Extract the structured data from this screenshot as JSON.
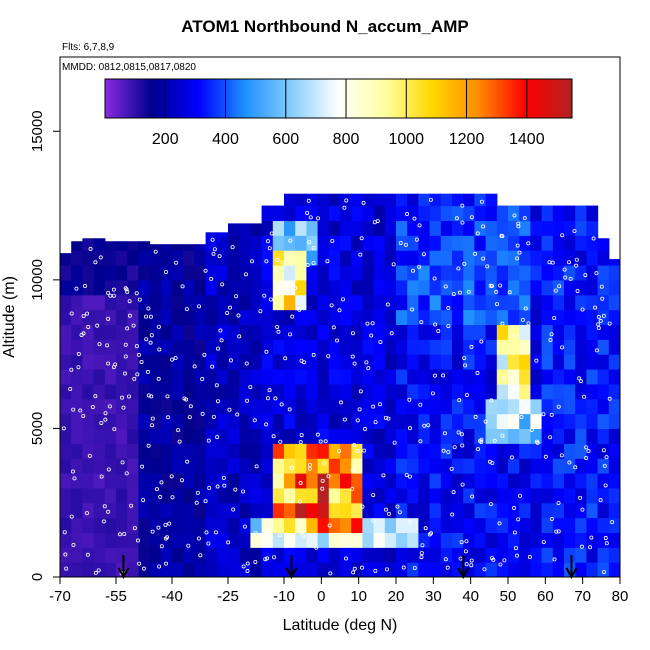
{
  "chart_data": {
    "type": "heatmap",
    "title": "ATOM1 Northbound N_accum_AMP",
    "subtitle_flights": "Flts: 6,7,8,9",
    "subtitle_dates": "MMDD: 0812,0815,0817,0820",
    "xlabel": "Latitude (deg N)",
    "ylabel": "Altitude (m)",
    "xlim": [
      -70,
      80
    ],
    "ylim": [
      0,
      17500
    ],
    "x_ticks": [
      -70,
      -55,
      -40,
      -25,
      -10,
      0,
      10,
      20,
      30,
      40,
      50,
      60,
      70,
      80
    ],
    "x_tick_labels": [
      "-70",
      "-55",
      "-40",
      "-25",
      "-10",
      "0",
      "10",
      "20",
      "30",
      "40",
      "50",
      "60",
      "70",
      "80"
    ],
    "y_ticks": [
      0,
      5000,
      10000,
      15000
    ],
    "y_tick_labels": [
      "0",
      "5000",
      "10000",
      "15000"
    ],
    "colorbar": {
      "range": [
        0,
        1550
      ],
      "ticks": [
        200,
        400,
        600,
        800,
        1000,
        1200,
        1400
      ],
      "tick_labels": [
        "200",
        "400",
        "600",
        "800",
        "1000",
        "1200",
        "1400"
      ],
      "colors": [
        "#8A2BE2",
        "#00008B",
        "#0000FF",
        "#1E90FF",
        "#87CEFA",
        "#FFFFFF",
        "#FFFFA0",
        "#FFD700",
        "#FF8C00",
        "#FF0000",
        "#B22222"
      ]
    },
    "bin_width_deg": 3,
    "bin_height_m": 500,
    "column_tops_m": [
      [
        -70,
        10900
      ],
      [
        -67,
        11300
      ],
      [
        -64,
        11400
      ],
      [
        -61,
        11400
      ],
      [
        -58,
        11300
      ],
      [
        -55,
        11300
      ],
      [
        -52,
        11300
      ],
      [
        -49,
        11300
      ],
      [
        -46,
        11200
      ],
      [
        -43,
        11200
      ],
      [
        -40,
        11200
      ],
      [
        -37,
        11200
      ],
      [
        -34,
        11200
      ],
      [
        -31,
        11600
      ],
      [
        -28,
        11600
      ],
      [
        -25,
        11900
      ],
      [
        -22,
        11900
      ],
      [
        -19,
        11900
      ],
      [
        -16,
        12500
      ],
      [
        -13,
        12500
      ],
      [
        -10,
        12900
      ],
      [
        -7,
        12900
      ],
      [
        -4,
        12900
      ],
      [
        -1,
        12900
      ],
      [
        2,
        12900
      ],
      [
        5,
        12900
      ],
      [
        8,
        12900
      ],
      [
        11,
        12900
      ],
      [
        14,
        12900
      ],
      [
        17,
        12900
      ],
      [
        20,
        12900
      ],
      [
        23,
        12900
      ],
      [
        26,
        12900
      ],
      [
        29,
        12900
      ],
      [
        32,
        12900
      ],
      [
        35,
        12900
      ],
      [
        38,
        12900
      ],
      [
        41,
        12900
      ],
      [
        44,
        12900
      ],
      [
        47,
        12500
      ],
      [
        50,
        12500
      ],
      [
        53,
        12500
      ],
      [
        56,
        12500
      ],
      [
        59,
        12500
      ],
      [
        62,
        12500
      ],
      [
        65,
        12500
      ],
      [
        68,
        12500
      ],
      [
        71,
        12500
      ],
      [
        74,
        11400
      ],
      [
        77,
        10700
      ]
    ],
    "features": [
      {
        "lat": [
          -70,
          -50
        ],
        "alt": [
          1000,
          10000
        ],
        "value": 80,
        "note": "southern high latitudes"
      },
      {
        "lat": [
          -50,
          -30
        ],
        "alt": [
          0,
          10000
        ],
        "value": 180
      },
      {
        "lat": [
          -12,
          10
        ],
        "alt": [
          1500,
          4500
        ],
        "value": 1150
      },
      {
        "lat": [
          -6,
          2
        ],
        "alt": [
          2000,
          4000
        ],
        "value": 1380
      },
      {
        "lat": [
          -20,
          25
        ],
        "alt": [
          800,
          1800
        ],
        "value": 700
      },
      {
        "lat": [
          -12,
          -4
        ],
        "alt": [
          9000,
          11000
        ],
        "value": 950
      },
      {
        "lat": [
          -14,
          0
        ],
        "alt": [
          10500,
          12000
        ],
        "value": 600
      },
      {
        "lat": [
          48,
          57
        ],
        "alt": [
          6000,
          8500
        ],
        "value": 900
      },
      {
        "lat": [
          45,
          58
        ],
        "alt": [
          4500,
          6000
        ],
        "value": 650
      },
      {
        "lat": [
          20,
          55
        ],
        "alt": [
          8500,
          12500
        ],
        "value": 380
      },
      {
        "lat": [
          60,
          78
        ],
        "alt": [
          0,
          10000
        ],
        "value": 330
      }
    ],
    "arrows_lat": [
      -53,
      -8,
      38,
      67
    ]
  }
}
